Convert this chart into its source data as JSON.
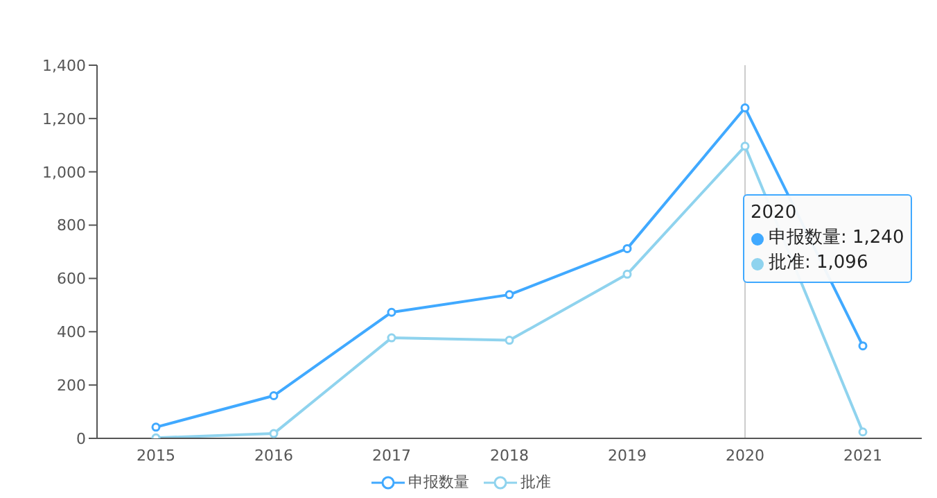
{
  "chart_data": {
    "type": "line",
    "categories": [
      "2015",
      "2016",
      "2017",
      "2018",
      "2019",
      "2020",
      "2021"
    ],
    "series": [
      {
        "name": "申报数量",
        "color": "#40a9ff",
        "values": [
          42,
          160,
          473,
          539,
          712,
          1240,
          347
        ]
      },
      {
        "name": "批准",
        "color": "#8fd3ee",
        "values": [
          2,
          18,
          377,
          368,
          616,
          1096,
          24
        ]
      }
    ],
    "ylim": [
      0,
      1400
    ],
    "yticks": [
      {
        "value": 0,
        "label": "0"
      },
      {
        "value": 200,
        "label": "200"
      },
      {
        "value": 400,
        "label": "400"
      },
      {
        "value": 600,
        "label": "600"
      },
      {
        "value": 800,
        "label": "800"
      },
      {
        "value": 1000,
        "label": "1,000"
      },
      {
        "value": 1200,
        "label": "1,200"
      },
      {
        "value": 1400,
        "label": "1,400"
      }
    ],
    "grid": false,
    "legend": "bottom",
    "marker": "circle",
    "line_style": "solid",
    "ref_lines": [
      {
        "axis": "x",
        "value": "2020",
        "color": "#cccccc"
      }
    ],
    "annotations": [
      "2020",
      "申报数量: 1,240",
      "批准: 1,096"
    ]
  }
}
